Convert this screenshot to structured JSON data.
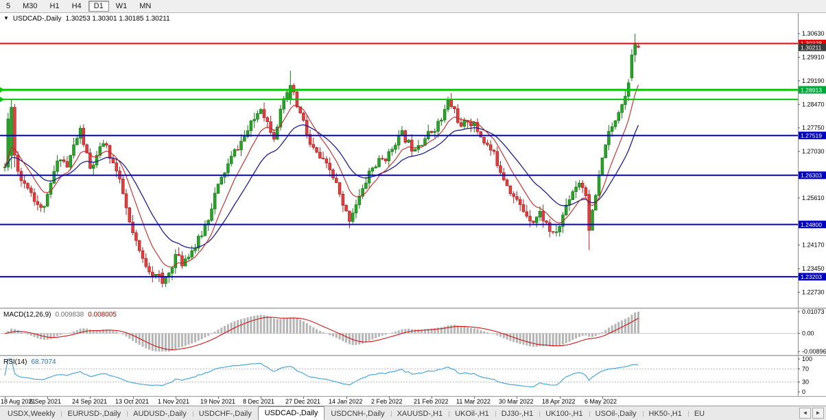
{
  "toolbar": {
    "timeframes": [
      {
        "label": "5",
        "active": false
      },
      {
        "label": "M30",
        "active": false
      },
      {
        "label": "H1",
        "active": false
      },
      {
        "label": "H4",
        "active": false
      },
      {
        "label": "D1",
        "active": true
      },
      {
        "label": "W1",
        "active": false
      },
      {
        "label": "MN",
        "active": false
      }
    ]
  },
  "chart": {
    "collapse_icon": "▼",
    "title": "USDCAD-,Daily",
    "ohlc": "1.30253 1.30301 1.30185 1.30211",
    "open": "1.30253",
    "high": "1.30301",
    "low": "1.30185",
    "close": "1.30211"
  },
  "price_axis": {
    "labels": [
      "1.30630",
      "1.29910",
      "1.29190",
      "1.28470",
      "1.27750",
      "1.27030",
      "1.25610",
      "1.24170",
      "1.23450",
      "1.22730"
    ],
    "badges": [
      {
        "text": "1.30328",
        "price": 1.30328,
        "color": "#e00000"
      },
      {
        "text": "1.30211",
        "price": 1.30211,
        "color": "#3c3c3c"
      },
      {
        "text": "1.28913",
        "price": 1.28913,
        "color": "#00a839"
      },
      {
        "text": "1.27519",
        "price": 1.27519,
        "color": "#0000c0"
      },
      {
        "text": "1.26303",
        "price": 1.26303,
        "color": "#0000c0"
      },
      {
        "text": "1.24800",
        "price": 1.248,
        "color": "#0000c0"
      },
      {
        "text": "1.23203",
        "price": 1.23203,
        "color": "#0000c0"
      }
    ],
    "scale": {
      "max": 1.3126,
      "min": 1.2226
    }
  },
  "hlines": [
    {
      "price": 1.30328,
      "color": "#ee0000",
      "width": 2,
      "name": "resistance-line-red",
      "marker": false
    },
    {
      "price": 1.28913,
      "color": "#00c800",
      "width": 3,
      "name": "green-level-upper",
      "marker": true
    },
    {
      "price": 1.2862,
      "color": "#00c800",
      "width": 2,
      "name": "green-level-lower",
      "marker": true
    },
    {
      "price": 1.27519,
      "color": "#0000c8",
      "width": 2,
      "name": "blue-level-1",
      "marker": false
    },
    {
      "price": 1.26303,
      "color": "#0000c8",
      "width": 2,
      "name": "blue-level-2",
      "marker": false
    },
    {
      "price": 1.248,
      "color": "#0000c8",
      "width": 2,
      "name": "blue-level-3",
      "marker": false
    },
    {
      "price": 1.23203,
      "color": "#0000c8",
      "width": 2,
      "name": "blue-level-4",
      "marker": false
    }
  ],
  "macd": {
    "label": "MACD(12,26,9)",
    "value_main": "0.009838",
    "value_signal": "0.008005",
    "fast": 12,
    "slow": 26,
    "signal": 9,
    "axis": [
      {
        "text": "0.01073",
        "value": 0.01073
      },
      {
        "text": "0.00",
        "value": 0
      },
      {
        "text": "-0.00896",
        "value": -0.00896
      }
    ],
    "colors": {
      "histogram": "#b5b5b5",
      "signal": "#cc0000",
      "zero_line": "#c9c9c9"
    }
  },
  "rsi": {
    "label": "RSI(14)",
    "value": "68.7074",
    "period": 14,
    "axis": [
      {
        "text": "100",
        "value": 100
      },
      {
        "text": "70",
        "value": 70
      },
      {
        "text": "30",
        "value": 30
      },
      {
        "text": "0",
        "value": 0
      }
    ],
    "levels": [
      70,
      30
    ],
    "color": "#3a9fd9",
    "level_color": "#b9b9d0"
  },
  "date_axis": {
    "bars_per_label": 13,
    "labels": [
      "18 Aug 2021",
      "6 Sep 2021",
      "24 Sep 2021",
      "13 Oct 2021",
      "1 Nov 2021",
      "19 Nov 2021",
      "8 Dec 2021",
      "27 Dec 2021",
      "14 Jan 2022",
      "2 Feb 2022",
      "21 Feb 2022",
      "11 Mar 2022",
      "30 Mar 2022",
      "18 Apr 2022",
      "6 May 2022"
    ]
  },
  "tabs": {
    "scroll_left_icon": "◄",
    "scroll_right_icon": "►",
    "items": [
      {
        "label": "USDX,Weekly",
        "active": false
      },
      {
        "label": "EURUSD-,Daily",
        "active": false
      },
      {
        "label": "AUDUSD-,Daily",
        "active": false
      },
      {
        "label": "USDCHF-,Daily",
        "active": false
      },
      {
        "label": "USDCAD-,Daily",
        "active": true
      },
      {
        "label": "USDCNH-,Daily",
        "active": false
      },
      {
        "label": "XAUUSD-,H1",
        "active": false
      },
      {
        "label": "UKOil-,H1",
        "active": false
      },
      {
        "label": "DJ30-,H1",
        "active": false
      },
      {
        "label": "UK100-,H1",
        "active": false
      },
      {
        "label": "USOil-,Daily",
        "active": false
      },
      {
        "label": "HK50-,H1",
        "active": false
      },
      {
        "label": "EU",
        "active": false
      }
    ]
  },
  "chart_data": {
    "type": "candlestick",
    "symbol": "USDCAD",
    "timeframe": "Daily",
    "title": "USDCAD-,Daily",
    "visible_range": [
      "18 Aug 2021",
      "12 May 2022"
    ],
    "price_range": [
      1.2226,
      1.3126
    ],
    "bars": 194,
    "seed": 11,
    "noise": {
      "close": 0.0026,
      "wick": 0.0022
    },
    "anchors": [
      [
        0,
        1.2655
      ],
      [
        1,
        1.28
      ],
      [
        2,
        1.2838
      ],
      [
        3,
        1.2692
      ],
      [
        5,
        1.2615
      ],
      [
        7,
        1.26
      ],
      [
        9,
        1.256
      ],
      [
        11,
        1.2525
      ],
      [
        13,
        1.256
      ],
      [
        15,
        1.264
      ],
      [
        17,
        1.269
      ],
      [
        19,
        1.2655
      ],
      [
        21,
        1.272
      ],
      [
        23,
        1.2768
      ],
      [
        25,
        1.269
      ],
      [
        26,
        1.2648
      ],
      [
        28,
        1.2682
      ],
      [
        30,
        1.2732
      ],
      [
        32,
        1.2692
      ],
      [
        34,
        1.2642
      ],
      [
        36,
        1.2572
      ],
      [
        38,
        1.2482
      ],
      [
        40,
        1.242
      ],
      [
        42,
        1.2372
      ],
      [
        45,
        1.2332
      ],
      [
        48,
        1.23
      ],
      [
        50,
        1.2332
      ],
      [
        52,
        1.2386
      ],
      [
        54,
        1.2362
      ],
      [
        56,
        1.2392
      ],
      [
        58,
        1.2412
      ],
      [
        60,
        1.2452
      ],
      [
        62,
        1.2502
      ],
      [
        64,
        1.2572
      ],
      [
        67,
        1.2642
      ],
      [
        70,
        1.2702
      ],
      [
        73,
        1.2748
      ],
      [
        76,
        1.2802
      ],
      [
        78,
        1.2842
      ],
      [
        80,
        1.2792
      ],
      [
        82,
        1.2752
      ],
      [
        84,
        1.2822
      ],
      [
        86,
        1.2882
      ],
      [
        87,
        1.2905
      ],
      [
        89,
        1.2842
      ],
      [
        91,
        1.2792
      ],
      [
        93,
        1.2722
      ],
      [
        96,
        1.2682
      ],
      [
        99,
        1.2645
      ],
      [
        101,
        1.2602
      ],
      [
        103,
        1.2532
      ],
      [
        105,
        1.2498
      ],
      [
        107,
        1.2545
      ],
      [
        109,
        1.2582
      ],
      [
        111,
        1.2642
      ],
      [
        114,
        1.2672
      ],
      [
        117,
        1.2692
      ],
      [
        119,
        1.2735
      ],
      [
        121,
        1.2755
      ],
      [
        124,
        1.2715
      ],
      [
        127,
        1.2735
      ],
      [
        130,
        1.2765
      ],
      [
        133,
        1.28
      ],
      [
        135,
        1.2855
      ],
      [
        137,
        1.283
      ],
      [
        139,
        1.2772
      ],
      [
        141,
        1.28
      ],
      [
        143,
        1.2782
      ],
      [
        146,
        1.2735
      ],
      [
        149,
        1.2692
      ],
      [
        152,
        1.2625
      ],
      [
        155,
        1.2565
      ],
      [
        158,
        1.2522
      ],
      [
        161,
        1.2492
      ],
      [
        163,
        1.2515
      ],
      [
        165,
        1.2482
      ],
      [
        167,
        1.2445
      ],
      [
        169,
        1.2475
      ],
      [
        171,
        1.254
      ],
      [
        173,
        1.2585
      ],
      [
        175,
        1.2612
      ],
      [
        177,
        1.2578
      ],
      [
        178,
        1.246
      ],
      [
        179,
        1.2512
      ],
      [
        181,
        1.2622
      ],
      [
        183,
        1.2732
      ],
      [
        185,
        1.2775
      ],
      [
        187,
        1.2832
      ],
      [
        189,
        1.2872
      ],
      [
        190,
        1.2922
      ],
      [
        191,
        1.2998
      ],
      [
        192,
        1.3033
      ],
      [
        193,
        1.3021
      ]
    ],
    "overrides": [
      {
        "i": 2,
        "o": 1.269,
        "h": 1.2862,
        "l": 1.265,
        "c": 1.2838
      },
      {
        "i": 3,
        "o": 1.2838,
        "h": 1.2848,
        "l": 1.2655,
        "c": 1.2692
      },
      {
        "i": 48,
        "o": 1.2332,
        "h": 1.2346,
        "l": 1.2288,
        "c": 1.23
      },
      {
        "i": 87,
        "o": 1.2862,
        "h": 1.295,
        "l": 1.2846,
        "c": 1.2905
      },
      {
        "i": 178,
        "o": 1.2572,
        "h": 1.2586,
        "l": 1.2402,
        "c": 1.2462
      },
      {
        "i": 191,
        "o": 1.2928,
        "h": 1.3016,
        "l": 1.2918,
        "c": 1.2998
      },
      {
        "i": 192,
        "o": 1.2998,
        "h": 1.3063,
        "l": 1.2976,
        "c": 1.3033
      },
      {
        "i": 193,
        "o": 1.30253,
        "h": 1.30301,
        "l": 1.30185,
        "c": 1.30211
      }
    ],
    "ma": {
      "fast": {
        "type": "ema",
        "period": 9,
        "color": "#c62323"
      },
      "slow": {
        "type": "ema",
        "period": 21,
        "color": "#1c1c8c"
      }
    },
    "candle_colors": {
      "up": "#2ba32b",
      "up_border": "#157815",
      "down": "#e04040",
      "down_border": "#a82020"
    }
  }
}
